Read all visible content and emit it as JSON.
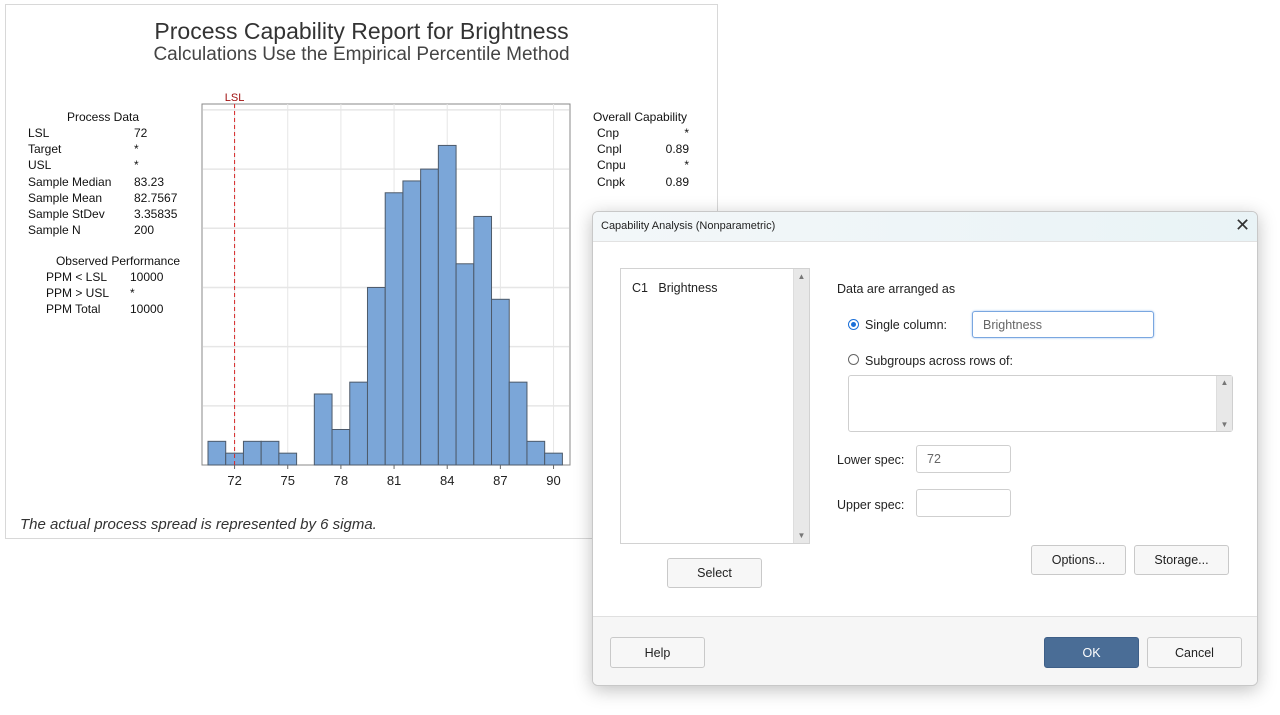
{
  "report": {
    "title": "Process Capability Report for Brightness",
    "subtitle": "Calculations Use the Empirical Percentile Method",
    "process_data": {
      "heading": "Process Data",
      "rows": [
        {
          "label": "LSL",
          "value": "72"
        },
        {
          "label": "Target",
          "value": "*"
        },
        {
          "label": "USL",
          "value": "*"
        },
        {
          "label": "Sample Median",
          "value": "83.23"
        },
        {
          "label": "Sample Mean",
          "value": "82.7567"
        },
        {
          "label": "Sample StDev",
          "value": "3.35835"
        },
        {
          "label": "Sample N",
          "value": "200"
        }
      ]
    },
    "observed_performance": {
      "heading": "Observed Performance",
      "rows": [
        {
          "label": "PPM < LSL",
          "value": "10000"
        },
        {
          "label": "PPM > USL",
          "value": "*"
        },
        {
          "label": "PPM Total",
          "value": "10000"
        }
      ]
    },
    "overall_capability": {
      "heading": "Overall Capability",
      "rows": [
        {
          "label": "Cnp",
          "value": "*"
        },
        {
          "label": "Cnpl",
          "value": "0.89"
        },
        {
          "label": "Cnpu",
          "value": "*"
        },
        {
          "label": "Cnpk",
          "value": "0.89"
        }
      ]
    },
    "footnote": "The actual process spread is represented by 6 sigma."
  },
  "chart_data": {
    "type": "bar",
    "bin_centers": [
      71,
      72,
      73,
      74,
      75,
      76,
      77,
      78,
      79,
      80,
      81,
      82,
      83,
      84,
      85,
      86,
      87,
      88,
      89,
      90
    ],
    "values": [
      2,
      1,
      2,
      2,
      1,
      0,
      6,
      3,
      7,
      15,
      23,
      24,
      25,
      27,
      17,
      21,
      14,
      7,
      2,
      1
    ],
    "x_ticks": [
      72,
      75,
      78,
      81,
      84,
      87,
      90
    ],
    "xlim": [
      70.5,
      90.5
    ],
    "ylim": [
      0,
      30.5
    ],
    "grid": true,
    "reference_lines": [
      {
        "label": "LSL",
        "x": 72,
        "color": "#d62728"
      }
    ],
    "bar_color": "#7ba6d8"
  },
  "dialog": {
    "title": "Capability Analysis (Nonparametric)",
    "columns": [
      {
        "id": "C1",
        "name": "Brightness"
      }
    ],
    "arranged_label": "Data are arranged as",
    "single_column_label": "Single column:",
    "single_column_value": "Brightness",
    "single_column_selected": true,
    "subgroups_label": "Subgroups across rows of:",
    "lower_spec_label": "Lower spec:",
    "lower_spec_value": "72",
    "upper_spec_label": "Upper spec:",
    "upper_spec_value": "",
    "select_label": "Select",
    "options_label": "Options...",
    "storage_label": "Storage...",
    "help_label": "Help",
    "ok_label": "OK",
    "cancel_label": "Cancel",
    "accent": "#4a6d96"
  }
}
